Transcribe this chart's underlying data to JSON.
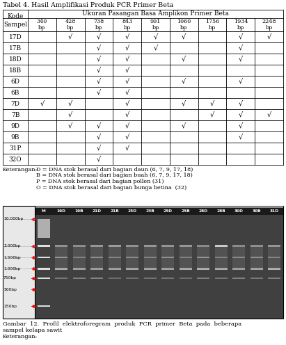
{
  "title": "Tabel 4. Hasil Amplifikasi Produk PCR Primer Beta",
  "table_header_row1": "Ukuran Pasangan Basa Amplikon Primer Beta",
  "col_header": "Kode\nSampel",
  "columns": [
    "340\nbp",
    "428\nbp",
    "738\nbp",
    "843\nbp",
    "991\nbp",
    "1060\nbp",
    "1756\nbp",
    "1934\nbp",
    "2248\nbp"
  ],
  "rows": [
    {
      "label": "17D",
      "checks": [
        0,
        1,
        1,
        1,
        1,
        1,
        0,
        1,
        1
      ]
    },
    {
      "label": "17B",
      "checks": [
        0,
        0,
        1,
        1,
        1,
        0,
        0,
        1,
        0
      ]
    },
    {
      "label": "18D",
      "checks": [
        0,
        0,
        1,
        1,
        0,
        1,
        0,
        1,
        0
      ]
    },
    {
      "label": "18B",
      "checks": [
        0,
        0,
        1,
        1,
        0,
        0,
        0,
        0,
        0
      ]
    },
    {
      "label": "6D",
      "checks": [
        0,
        0,
        1,
        1,
        0,
        1,
        0,
        1,
        0
      ]
    },
    {
      "label": "6B",
      "checks": [
        0,
        0,
        1,
        1,
        0,
        0,
        0,
        0,
        0
      ]
    },
    {
      "label": "7D",
      "checks": [
        1,
        1,
        0,
        1,
        0,
        1,
        1,
        1,
        0
      ]
    },
    {
      "label": "7B",
      "checks": [
        0,
        1,
        0,
        1,
        0,
        0,
        1,
        1,
        1
      ]
    },
    {
      "label": "9D",
      "checks": [
        0,
        1,
        1,
        1,
        0,
        1,
        0,
        1,
        0
      ]
    },
    {
      "label": "9B",
      "checks": [
        0,
        0,
        1,
        1,
        0,
        0,
        0,
        1,
        0
      ]
    },
    {
      "label": "31P",
      "checks": [
        0,
        0,
        1,
        1,
        0,
        0,
        0,
        0,
        0
      ]
    },
    {
      "label": "32O",
      "checks": [
        0,
        0,
        1,
        0,
        0,
        0,
        0,
        0,
        0
      ]
    }
  ],
  "keterangan_lines": [
    "D = DNA stok berasal dari bagian daun (6, 7, 9, 17, 18)",
    "B = DNA stok berasal dari bagian buah (6, 7, 9, 17, 18)",
    "P = DNA stok berasal dari bagian pollen (31)",
    "O = DNA stok berasal dari bagian bunga betina  (32)"
  ],
  "gel_bp_labels": [
    "10.000bp",
    "2.000bp",
    "1.500bp",
    "1.000bp",
    "750bp",
    "500bp",
    "250bp"
  ],
  "gel_lane_labels": [
    "M",
    "19D",
    "19B",
    "21D",
    "21B",
    "23D",
    "23B",
    "25D",
    "25B",
    "28D",
    "28B",
    "30D",
    "30B",
    "31D"
  ],
  "figure_caption_line1": "Gambar  12.  Profil  elektroforegram  produk  PCR  primer  Beta  pada  beberapa",
  "figure_caption_line2": "              sampel kelapa sawit",
  "keterangan_label": "Keterangan:",
  "bg_color": "#ffffff",
  "table_border_color": "#000000",
  "text_color": "#000000"
}
